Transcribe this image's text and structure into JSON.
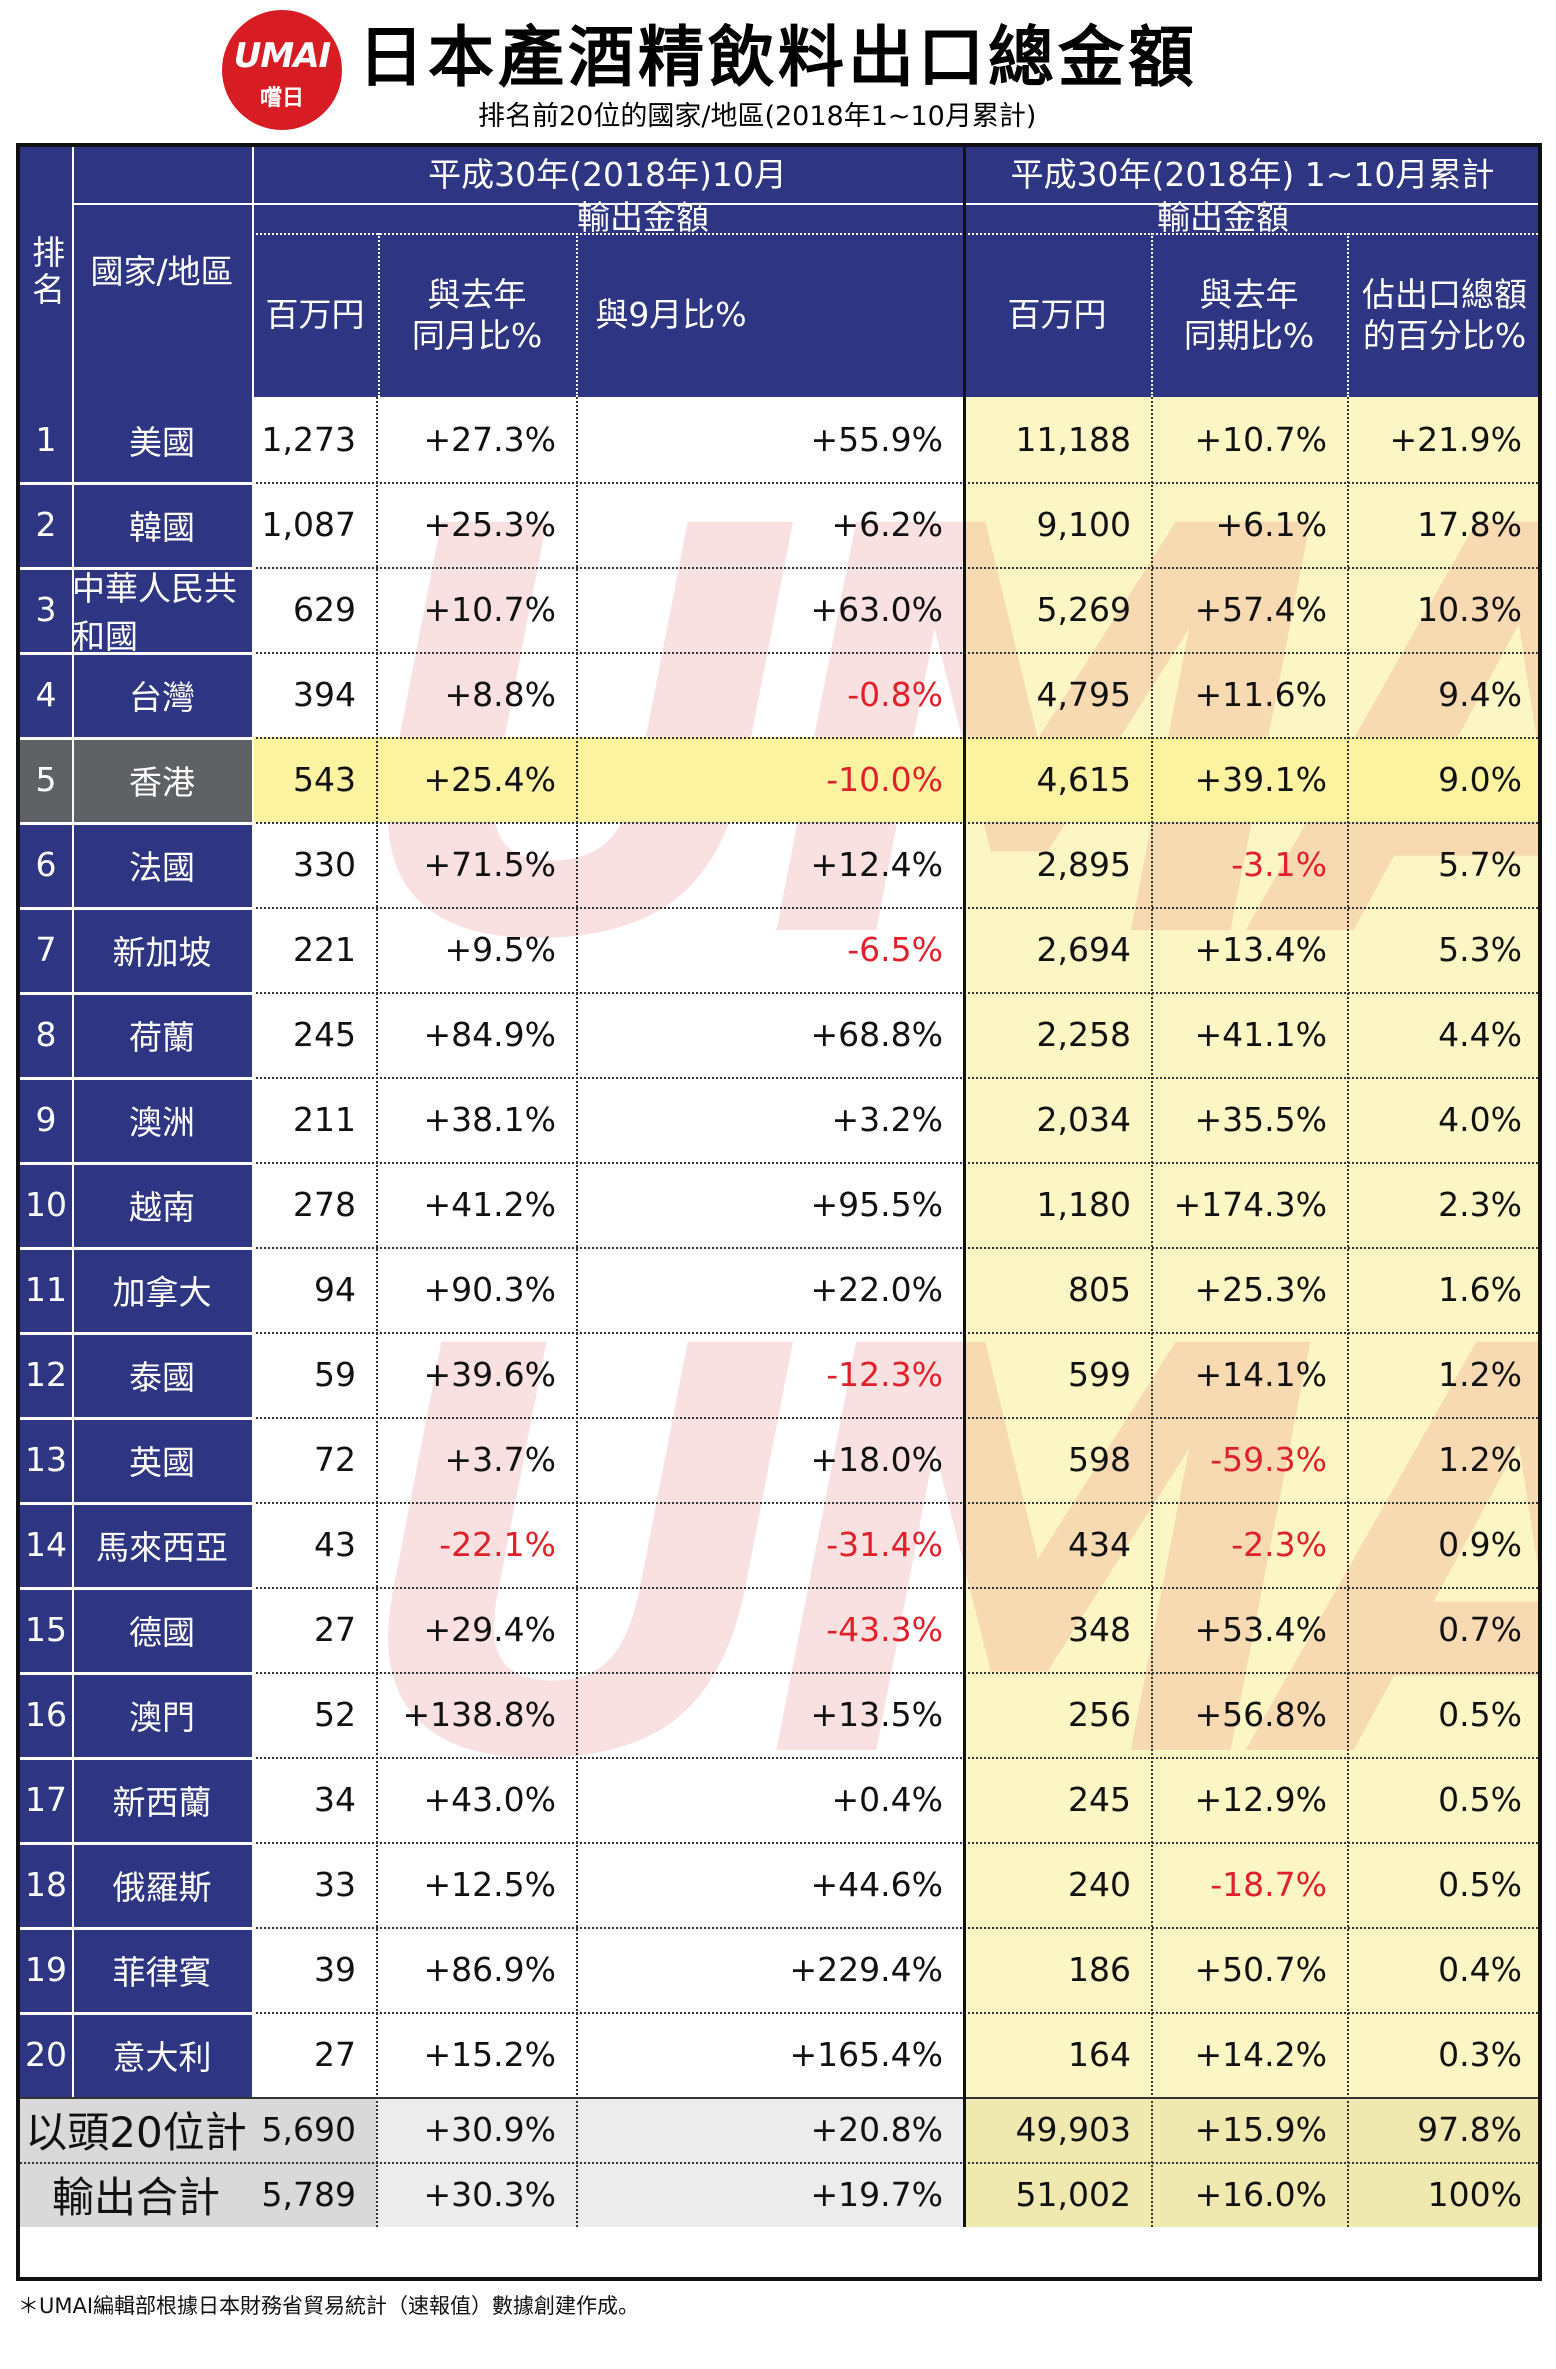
{
  "header": {
    "logo_top": "UMAI",
    "logo_bottom": "嚐日",
    "title": "日本產酒精飲料出口總金額",
    "subtitle": "排名前20位的國家/地區(2018年1~10月累計)"
  },
  "table": {
    "col_rank": "排名",
    "col_country": "國家/地區",
    "group_month": "平成30年(2018年)10月",
    "group_cumulative": "平成30年(2018年) 1~10月累計",
    "sub_export_amount_month": "輸出金額",
    "sub_export_amount_cum": "輸出金額",
    "col_month_jpy": "百万円",
    "col_month_yoy_l1": "與去年",
    "col_month_yoy_l2": "同月比%",
    "col_month_mom": "與9月比%",
    "col_cum_jpy": "百万円",
    "col_cum_yoy_l1": "與去年",
    "col_cum_yoy_l2": "同期比%",
    "col_cum_share_l1": "佔出口總額",
    "col_cum_share_l2": "的百分比%",
    "rows": [
      {
        "rank": "1",
        "country": "美國",
        "m_jpy": "1,273",
        "m_yoy": "+27.3%",
        "m_mom": "+55.9%",
        "c_jpy": "11,188",
        "c_yoy": "+10.7%",
        "c_share": "+21.9%"
      },
      {
        "rank": "2",
        "country": "韓國",
        "m_jpy": "1,087",
        "m_yoy": "+25.3%",
        "m_mom": "+6.2%",
        "c_jpy": "9,100",
        "c_yoy": "+6.1%",
        "c_share": "17.8%"
      },
      {
        "rank": "3",
        "country": "中華人民共和國",
        "m_jpy": "629",
        "m_yoy": "+10.7%",
        "m_mom": "+63.0%",
        "c_jpy": "5,269",
        "c_yoy": "+57.4%",
        "c_share": "10.3%"
      },
      {
        "rank": "4",
        "country": "台灣",
        "m_jpy": "394",
        "m_yoy": "+8.8%",
        "m_mom": "-0.8%",
        "c_jpy": "4,795",
        "c_yoy": "+11.6%",
        "c_share": "9.4%"
      },
      {
        "rank": "5",
        "country": "香港",
        "m_jpy": "543",
        "m_yoy": "+25.4%",
        "m_mom": "-10.0%",
        "c_jpy": "4,615",
        "c_yoy": "+39.1%",
        "c_share": "9.0%"
      },
      {
        "rank": "6",
        "country": "法國",
        "m_jpy": "330",
        "m_yoy": "+71.5%",
        "m_mom": "+12.4%",
        "c_jpy": "2,895",
        "c_yoy": "-3.1%",
        "c_share": "5.7%"
      },
      {
        "rank": "7",
        "country": "新加坡",
        "m_jpy": "221",
        "m_yoy": "+9.5%",
        "m_mom": "-6.5%",
        "c_jpy": "2,694",
        "c_yoy": "+13.4%",
        "c_share": "5.3%"
      },
      {
        "rank": "8",
        "country": "荷蘭",
        "m_jpy": "245",
        "m_yoy": "+84.9%",
        "m_mom": "+68.8%",
        "c_jpy": "2,258",
        "c_yoy": "+41.1%",
        "c_share": "4.4%"
      },
      {
        "rank": "9",
        "country": "澳洲",
        "m_jpy": "211",
        "m_yoy": "+38.1%",
        "m_mom": "+3.2%",
        "c_jpy": "2,034",
        "c_yoy": "+35.5%",
        "c_share": "4.0%"
      },
      {
        "rank": "10",
        "country": "越南",
        "m_jpy": "278",
        "m_yoy": "+41.2%",
        "m_mom": "+95.5%",
        "c_jpy": "1,180",
        "c_yoy": "+174.3%",
        "c_share": "2.3%"
      },
      {
        "rank": "11",
        "country": "加拿大",
        "m_jpy": "94",
        "m_yoy": "+90.3%",
        "m_mom": "+22.0%",
        "c_jpy": "805",
        "c_yoy": "+25.3%",
        "c_share": "1.6%"
      },
      {
        "rank": "12",
        "country": "泰國",
        "m_jpy": "59",
        "m_yoy": "+39.6%",
        "m_mom": "-12.3%",
        "c_jpy": "599",
        "c_yoy": "+14.1%",
        "c_share": "1.2%"
      },
      {
        "rank": "13",
        "country": "英國",
        "m_jpy": "72",
        "m_yoy": "+3.7%",
        "m_mom": "+18.0%",
        "c_jpy": "598",
        "c_yoy": "-59.3%",
        "c_share": "1.2%"
      },
      {
        "rank": "14",
        "country": "馬來西亞",
        "m_jpy": "43",
        "m_yoy": "-22.1%",
        "m_mom": "-31.4%",
        "c_jpy": "434",
        "c_yoy": "-2.3%",
        "c_share": "0.9%"
      },
      {
        "rank": "15",
        "country": "德國",
        "m_jpy": "27",
        "m_yoy": "+29.4%",
        "m_mom": "-43.3%",
        "c_jpy": "348",
        "c_yoy": "+53.4%",
        "c_share": "0.7%"
      },
      {
        "rank": "16",
        "country": "澳門",
        "m_jpy": "52",
        "m_yoy": "+138.8%",
        "m_mom": "+13.5%",
        "c_jpy": "256",
        "c_yoy": "+56.8%",
        "c_share": "0.5%"
      },
      {
        "rank": "17",
        "country": "新西蘭",
        "m_jpy": "34",
        "m_yoy": "+43.0%",
        "m_mom": "+0.4%",
        "c_jpy": "245",
        "c_yoy": "+12.9%",
        "c_share": "0.5%"
      },
      {
        "rank": "18",
        "country": "俄羅斯",
        "m_jpy": "33",
        "m_yoy": "+12.5%",
        "m_mom": "+44.6%",
        "c_jpy": "240",
        "c_yoy": "-18.7%",
        "c_share": "0.5%"
      },
      {
        "rank": "19",
        "country": "菲律賓",
        "m_jpy": "39",
        "m_yoy": "+86.9%",
        "m_mom": "+229.4%",
        "c_jpy": "186",
        "c_yoy": "+50.7%",
        "c_share": "0.4%"
      },
      {
        "rank": "20",
        "country": "意大利",
        "m_jpy": "27",
        "m_yoy": "+15.2%",
        "m_mom": "+165.4%",
        "c_jpy": "164",
        "c_yoy": "+14.2%",
        "c_share": "0.3%"
      }
    ],
    "totals": [
      {
        "label": "以頭20位計",
        "m_jpy": "5,690",
        "m_yoy": "+30.9%",
        "m_mom": "+20.8%",
        "c_jpy": "49,903",
        "c_yoy": "+15.9%",
        "c_share": "97.8%"
      },
      {
        "label": "輸出合計",
        "m_jpy": "5,789",
        "m_yoy": "+30.3%",
        "m_mom": "+19.7%",
        "c_jpy": "51,002",
        "c_yoy": "+16.0%",
        "c_share": "100%"
      }
    ]
  },
  "watermark": {
    "big": "UMAI",
    "small": "嚐日"
  },
  "footnote": "＊UMAI編輯部根據日本財務省貿易統計（速報值）數據創建作成。",
  "colors": {
    "navy": "#2e3582",
    "yellow": "#fbf6c3",
    "highlight": "#fbf3a0",
    "negative": "#e0202a",
    "logo_red": "#d81c24"
  }
}
